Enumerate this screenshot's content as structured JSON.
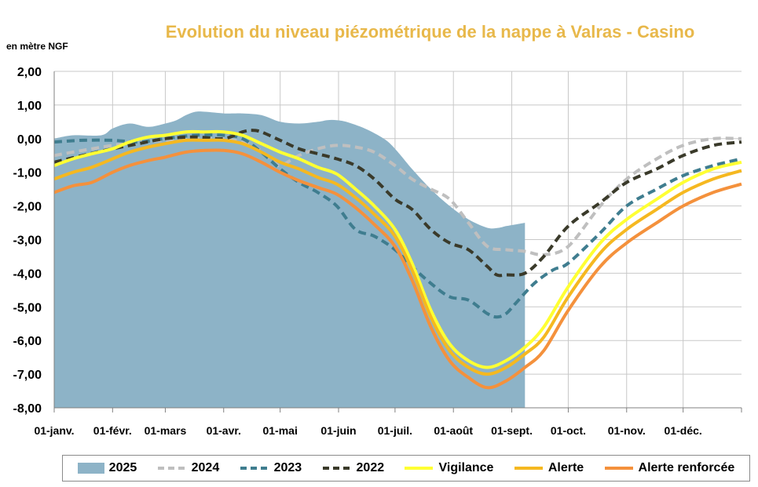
{
  "chart_data": {
    "type": "line",
    "title": "Evolution du niveau piézométrique de la nappe à Valras - Casino",
    "ylabel": "en mètre NGF",
    "xlabel": "",
    "ylim": [
      -8,
      2
    ],
    "xlim": [
      0,
      365
    ],
    "yticks": [
      {
        "value": 2,
        "label": "2,00"
      },
      {
        "value": 1,
        "label": "1,00"
      },
      {
        "value": 0,
        "label": "0,00"
      },
      {
        "value": -1,
        "label": "-1,00"
      },
      {
        "value": -2,
        "label": "-2,00"
      },
      {
        "value": -3,
        "label": "-3,00"
      },
      {
        "value": -4,
        "label": "-4,00"
      },
      {
        "value": -5,
        "label": "-5,00"
      },
      {
        "value": -6,
        "label": "-6,00"
      },
      {
        "value": -7,
        "label": "-7,00"
      },
      {
        "value": -8,
        "label": "-8,00"
      }
    ],
    "xticks": [
      {
        "value": 0,
        "label": "01-janv."
      },
      {
        "value": 31,
        "label": "01-févr."
      },
      {
        "value": 59,
        "label": "01-mars"
      },
      {
        "value": 90,
        "label": "01-avr."
      },
      {
        "value": 120,
        "label": "01-mai"
      },
      {
        "value": 151,
        "label": "01-juin"
      },
      {
        "value": 181,
        "label": "01-juil."
      },
      {
        "value": 212,
        "label": "01-août"
      },
      {
        "value": 243,
        "label": "01-sept."
      },
      {
        "value": 273,
        "label": "01-oct."
      },
      {
        "value": 304,
        "label": "01-nov."
      },
      {
        "value": 334,
        "label": "01-déc."
      }
    ],
    "grid": true,
    "legend_position": "bottom",
    "series": [
      {
        "name": "2025",
        "kind": "area",
        "color": "#8db3c7",
        "x": [
          0,
          10,
          25,
          31,
          40,
          50,
          59,
          65,
          70,
          75,
          80,
          90,
          95,
          100,
          110,
          120,
          130,
          140,
          145,
          150,
          155,
          165,
          175,
          181,
          190,
          200,
          210,
          220,
          230,
          236,
          240,
          245,
          250
        ],
        "y": [
          0.0,
          0.1,
          0.1,
          0.3,
          0.45,
          0.35,
          0.45,
          0.55,
          0.7,
          0.8,
          0.8,
          0.75,
          0.75,
          0.75,
          0.7,
          0.5,
          0.45,
          0.5,
          0.55,
          0.55,
          0.5,
          0.3,
          0.0,
          -0.3,
          -0.9,
          -1.5,
          -2.0,
          -2.4,
          -2.65,
          -2.65,
          -2.6,
          -2.55,
          -2.5
        ]
      },
      {
        "name": "2024",
        "kind": "line",
        "color": "#bfbfbf",
        "dash": "10,6",
        "x": [
          0,
          15,
          31,
          45,
          59,
          75,
          90,
          105,
          115,
          120,
          130,
          140,
          150,
          160,
          170,
          181,
          190,
          200,
          210,
          220,
          230,
          240,
          250,
          260,
          273,
          290,
          304,
          320,
          334,
          350,
          365
        ],
        "y": [
          -0.5,
          -0.35,
          -0.2,
          -0.1,
          -0.05,
          0.0,
          0.0,
          -0.2,
          -0.6,
          -0.8,
          -0.5,
          -0.3,
          -0.2,
          -0.25,
          -0.4,
          -0.8,
          -1.2,
          -1.5,
          -1.8,
          -2.5,
          -3.2,
          -3.3,
          -3.35,
          -3.45,
          -3.2,
          -2.0,
          -1.2,
          -0.6,
          -0.2,
          0.0,
          0.0
        ]
      },
      {
        "name": "2023",
        "kind": "line",
        "color": "#3f7d8f",
        "dash": "10,6",
        "x": [
          0,
          15,
          31,
          45,
          59,
          75,
          90,
          100,
          110,
          120,
          130,
          140,
          150,
          160,
          170,
          181,
          190,
          200,
          210,
          220,
          230,
          235,
          240,
          245,
          255,
          265,
          273,
          290,
          304,
          320,
          334,
          350,
          365
        ],
        "y": [
          -0.1,
          -0.05,
          -0.05,
          -0.1,
          0.0,
          0.1,
          0.1,
          0.0,
          -0.4,
          -0.9,
          -1.3,
          -1.6,
          -2.0,
          -2.7,
          -2.9,
          -3.3,
          -3.8,
          -4.3,
          -4.7,
          -4.8,
          -5.2,
          -5.3,
          -5.2,
          -4.9,
          -4.3,
          -3.9,
          -3.7,
          -2.8,
          -2.0,
          -1.5,
          -1.1,
          -0.8,
          -0.6
        ]
      },
      {
        "name": "2022",
        "kind": "line",
        "color": "#3a3a2a",
        "dash": "10,6",
        "x": [
          0,
          15,
          31,
          45,
          59,
          75,
          90,
          100,
          105,
          110,
          120,
          130,
          140,
          150,
          160,
          170,
          181,
          190,
          200,
          210,
          220,
          230,
          235,
          240,
          250,
          260,
          273,
          290,
          304,
          320,
          334,
          350,
          365
        ],
        "y": [
          -0.7,
          -0.5,
          -0.3,
          -0.15,
          0.0,
          0.05,
          0.0,
          0.2,
          0.25,
          0.2,
          -0.05,
          -0.3,
          -0.45,
          -0.6,
          -0.8,
          -1.2,
          -1.8,
          -2.1,
          -2.7,
          -3.1,
          -3.3,
          -3.8,
          -4.05,
          -4.05,
          -4.0,
          -3.5,
          -2.6,
          -1.9,
          -1.3,
          -0.9,
          -0.5,
          -0.2,
          -0.1
        ]
      },
      {
        "name": "Vigilance",
        "kind": "line",
        "color": "#ffff33",
        "x": [
          0,
          10,
          20,
          31,
          40,
          50,
          59,
          70,
          80,
          90,
          100,
          110,
          120,
          130,
          140,
          150,
          160,
          170,
          181,
          190,
          200,
          210,
          220,
          230,
          240,
          250,
          260,
          273,
          290,
          304,
          320,
          334,
          350,
          365
        ],
        "y": [
          -0.8,
          -0.6,
          -0.45,
          -0.3,
          -0.1,
          0.05,
          0.1,
          0.2,
          0.2,
          0.2,
          0.1,
          -0.15,
          -0.4,
          -0.6,
          -0.85,
          -1.05,
          -1.5,
          -2.0,
          -2.7,
          -3.7,
          -5.1,
          -6.1,
          -6.6,
          -6.8,
          -6.6,
          -6.2,
          -5.6,
          -4.4,
          -3.1,
          -2.4,
          -1.8,
          -1.3,
          -0.9,
          -0.7
        ]
      },
      {
        "name": "Alerte",
        "kind": "line",
        "color": "#f5b820",
        "x": [
          0,
          10,
          20,
          31,
          40,
          50,
          59,
          70,
          80,
          90,
          100,
          110,
          120,
          130,
          140,
          150,
          160,
          170,
          181,
          190,
          200,
          210,
          220,
          230,
          240,
          250,
          260,
          273,
          290,
          304,
          320,
          334,
          350,
          365
        ],
        "y": [
          -1.2,
          -1.0,
          -0.85,
          -0.6,
          -0.4,
          -0.25,
          -0.15,
          -0.05,
          -0.05,
          -0.05,
          -0.15,
          -0.4,
          -0.7,
          -0.9,
          -1.15,
          -1.35,
          -1.75,
          -2.25,
          -2.9,
          -3.9,
          -5.3,
          -6.3,
          -6.8,
          -7.0,
          -6.8,
          -6.4,
          -5.9,
          -4.7,
          -3.4,
          -2.7,
          -2.1,
          -1.6,
          -1.2,
          -0.95
        ]
      },
      {
        "name": "Alerte renforcée",
        "kind": "line",
        "color": "#f4913c",
        "x": [
          0,
          10,
          20,
          31,
          40,
          50,
          59,
          70,
          80,
          90,
          100,
          110,
          120,
          130,
          140,
          150,
          160,
          170,
          181,
          190,
          200,
          210,
          220,
          230,
          240,
          250,
          260,
          273,
          290,
          304,
          320,
          334,
          350,
          365
        ],
        "y": [
          -1.6,
          -1.4,
          -1.3,
          -1.0,
          -0.8,
          -0.65,
          -0.55,
          -0.4,
          -0.35,
          -0.35,
          -0.45,
          -0.7,
          -1.0,
          -1.25,
          -1.45,
          -1.65,
          -2.05,
          -2.55,
          -3.2,
          -4.2,
          -5.6,
          -6.6,
          -7.1,
          -7.4,
          -7.2,
          -6.8,
          -6.3,
          -5.1,
          -3.8,
          -3.1,
          -2.5,
          -2.0,
          -1.6,
          -1.35
        ]
      }
    ]
  }
}
